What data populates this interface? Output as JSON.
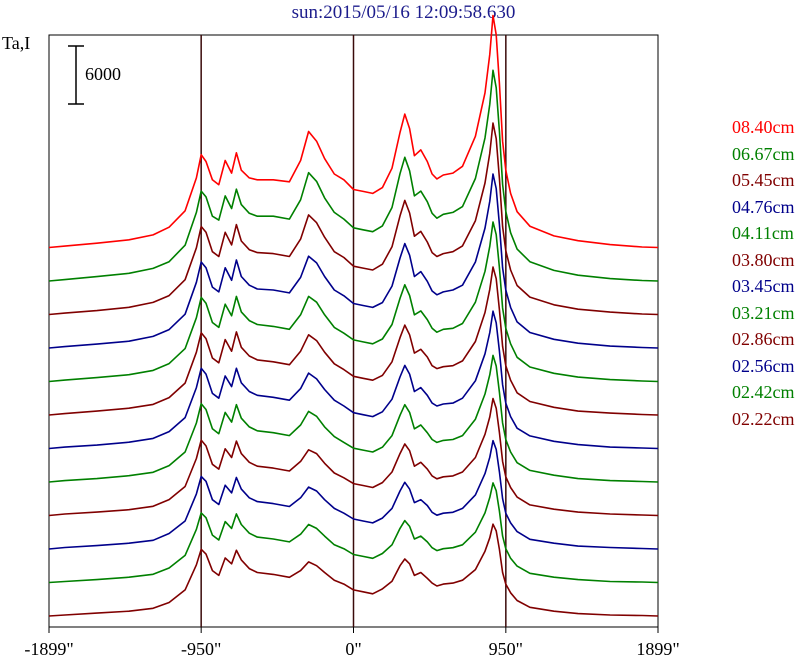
{
  "title": "sun:2015/05/16 12:09:58.630",
  "ylabel": "Ta,I",
  "scale_bar_label": "6000",
  "chart_data": {
    "type": "line",
    "title": "sun:2015/05/16 12:09:58.630",
    "ylabel": "Ta,I",
    "xlabel": "",
    "xlim": [
      -1899,
      1899
    ],
    "x_ticks": [
      -1899,
      -950,
      0,
      950,
      1899
    ],
    "x_tick_labels": [
      "-1899\"",
      "-950\"",
      "0\"",
      "950\"",
      "1899\""
    ],
    "vertical_lines": [
      -950,
      0,
      950
    ],
    "scale_bar_value": 6000,
    "layout": "stacked offset profiles, shortest wavelength at bottom",
    "grid": false,
    "legend_position": "right",
    "x": [
      -1899,
      -1800,
      -1600,
      -1400,
      -1250,
      -1150,
      -1050,
      -980,
      -950,
      -920,
      -880,
      -840,
      -800,
      -760,
      -730,
      -700,
      -650,
      -600,
      -500,
      -400,
      -330,
      -280,
      -230,
      -180,
      -120,
      -60,
      0,
      60,
      120,
      180,
      240,
      290,
      320,
      350,
      380,
      420,
      460,
      490,
      520,
      560,
      620,
      680,
      760,
      820,
      850,
      870,
      890,
      910,
      930,
      950,
      980,
      1020,
      1100,
      1250,
      1400,
      1600,
      1800,
      1899
    ],
    "series": [
      {
        "name": "08.40cm",
        "color": "#ff0000",
        "values": [
          0,
          150,
          450,
          800,
          1300,
          2100,
          3800,
          7200,
          9600,
          8900,
          7000,
          6500,
          9000,
          7700,
          9800,
          8000,
          7200,
          7000,
          7000,
          6800,
          9000,
          12000,
          11000,
          9200,
          7600,
          7000,
          6000,
          5800,
          5600,
          6200,
          8200,
          11900,
          13800,
          12300,
          9500,
          10100,
          8900,
          7600,
          7100,
          7500,
          7700,
          8400,
          11500,
          16000,
          20000,
          24000,
          22000,
          17000,
          11000,
          8000,
          5600,
          3700,
          2200,
          1200,
          700,
          300,
          50,
          0
        ]
      },
      {
        "name": "06.67cm",
        "color": "#008000",
        "values": [
          0,
          150,
          450,
          800,
          1300,
          2000,
          3700,
          7100,
          9300,
          8700,
          6700,
          6300,
          8800,
          7500,
          9500,
          7900,
          7000,
          6700,
          6700,
          6400,
          8400,
          11200,
          10300,
          8600,
          7100,
          6400,
          5500,
          5300,
          5100,
          5700,
          7600,
          11100,
          12800,
          11400,
          8800,
          9300,
          8200,
          7000,
          6500,
          6900,
          7100,
          7700,
          10600,
          14800,
          18300,
          21800,
          20000,
          15500,
          10000,
          7200,
          5000,
          3300,
          2000,
          1100,
          600,
          250,
          50,
          0
        ]
      },
      {
        "name": "05.45cm",
        "color": "#800000",
        "values": [
          0,
          150,
          400,
          750,
          1250,
          1950,
          3600,
          6900,
          9100,
          8500,
          6500,
          6000,
          8500,
          7200,
          9300,
          7600,
          6700,
          6400,
          6300,
          6000,
          7800,
          10300,
          9500,
          8000,
          6500,
          5900,
          5000,
          4800,
          4600,
          5200,
          7000,
          10200,
          11800,
          10500,
          8100,
          8600,
          7500,
          6400,
          6000,
          6300,
          6500,
          7100,
          9700,
          13600,
          16700,
          19800,
          18200,
          14100,
          9100,
          6600,
          4600,
          3000,
          1800,
          1000,
          550,
          250,
          50,
          0
        ]
      },
      {
        "name": "04.76cm",
        "color": "#00008b",
        "values": [
          0,
          150,
          400,
          700,
          1200,
          1900,
          3500,
          6800,
          8900,
          8300,
          6300,
          5800,
          8300,
          7000,
          9100,
          7400,
          6500,
          6100,
          6000,
          5700,
          7300,
          9500,
          8800,
          7400,
          6000,
          5400,
          4600,
          4400,
          4200,
          4700,
          6400,
          9300,
          10800,
          9600,
          7400,
          7900,
          6900,
          5900,
          5500,
          5800,
          6000,
          6500,
          8900,
          12400,
          15200,
          18000,
          16500,
          12800,
          8300,
          6000,
          4200,
          2700,
          1600,
          900,
          500,
          200,
          50,
          0
        ]
      },
      {
        "name": "04.11cm",
        "color": "#008000",
        "values": [
          0,
          150,
          400,
          700,
          1150,
          1850,
          3400,
          6600,
          8700,
          8100,
          6100,
          5600,
          8000,
          6800,
          8800,
          7200,
          6300,
          5900,
          5700,
          5400,
          6900,
          8800,
          8200,
          6900,
          5600,
          5000,
          4300,
          4100,
          3900,
          4400,
          5900,
          8600,
          10000,
          8900,
          6900,
          7300,
          6400,
          5500,
          5100,
          5400,
          5500,
          6000,
          8200,
          11400,
          14000,
          16500,
          15200,
          11800,
          7600,
          5500,
          3900,
          2500,
          1500,
          850,
          450,
          200,
          50,
          0
        ]
      },
      {
        "name": "03.80cm",
        "color": "#800000",
        "values": [
          0,
          150,
          400,
          700,
          1100,
          1800,
          3300,
          6500,
          8500,
          7900,
          5900,
          5400,
          7800,
          6600,
          8600,
          7000,
          6100,
          5700,
          5500,
          5200,
          6600,
          8300,
          7700,
          6500,
          5300,
          4700,
          4000,
          3800,
          3600,
          4100,
          5500,
          8000,
          9300,
          8300,
          6400,
          6800,
          6000,
          5100,
          4800,
          5000,
          5100,
          5600,
          7600,
          10600,
          13000,
          15300,
          14100,
          10900,
          7100,
          5100,
          3600,
          2300,
          1400,
          800,
          400,
          200,
          50,
          0
        ]
      },
      {
        "name": "03.45cm",
        "color": "#00008b",
        "values": [
          0,
          150,
          350,
          650,
          1050,
          1750,
          3200,
          6300,
          8300,
          7700,
          5700,
          5200,
          7500,
          6400,
          8300,
          6800,
          5900,
          5500,
          5300,
          5000,
          6200,
          7800,
          7200,
          6100,
          5000,
          4400,
          3700,
          3500,
          3300,
          3800,
          5100,
          7400,
          8600,
          7700,
          5900,
          6300,
          5500,
          4700,
          4400,
          4600,
          4700,
          5200,
          7000,
          9800,
          12000,
          14200,
          13000,
          10100,
          6600,
          4700,
          3300,
          2100,
          1300,
          750,
          400,
          150,
          50,
          0
        ]
      },
      {
        "name": "03.21cm",
        "color": "#008000",
        "values": [
          0,
          150,
          350,
          650,
          1000,
          1700,
          3100,
          6100,
          8100,
          7500,
          5500,
          5000,
          7200,
          6200,
          8000,
          6600,
          5700,
          5300,
          5100,
          4800,
          5900,
          7300,
          6800,
          5700,
          4700,
          4100,
          3500,
          3300,
          3100,
          3600,
          4800,
          6900,
          8000,
          7200,
          5500,
          5900,
          5100,
          4400,
          4100,
          4300,
          4400,
          4800,
          6500,
          9100,
          11100,
          13100,
          12000,
          9300,
          6100,
          4400,
          3100,
          2000,
          1200,
          700,
          350,
          150,
          50,
          0
        ]
      },
      {
        "name": "02.86cm",
        "color": "#800000",
        "values": [
          0,
          150,
          350,
          600,
          950,
          1650,
          3000,
          5900,
          7800,
          7200,
          5300,
          4800,
          6900,
          6000,
          7700,
          6400,
          5500,
          5100,
          4900,
          4600,
          5600,
          6800,
          6400,
          5400,
          4400,
          3900,
          3300,
          3100,
          2900,
          3400,
          4500,
          6400,
          7400,
          6700,
          5100,
          5500,
          4800,
          4100,
          3800,
          4000,
          4100,
          4500,
          6000,
          8400,
          10200,
          12100,
          11100,
          8600,
          5600,
          4000,
          2900,
          1900,
          1100,
          650,
          350,
          150,
          50,
          0
        ]
      },
      {
        "name": "02.56cm",
        "color": "#00008b",
        "values": [
          0,
          150,
          350,
          600,
          900,
          1600,
          2900,
          5700,
          7500,
          7000,
          5100,
          4600,
          6600,
          5800,
          7400,
          6200,
          5300,
          4900,
          4700,
          4400,
          5300,
          6400,
          6000,
          5100,
          4200,
          3700,
          3100,
          2900,
          2700,
          3200,
          4200,
          6000,
          6900,
          6200,
          4800,
          5100,
          4500,
          3800,
          3500,
          3700,
          3800,
          4200,
          5600,
          7800,
          9500,
          11200,
          10300,
          8000,
          5200,
          3700,
          2700,
          1800,
          1000,
          600,
          300,
          150,
          50,
          0
        ]
      },
      {
        "name": "02.42cm",
        "color": "#008000",
        "values": [
          0,
          100,
          300,
          550,
          850,
          1500,
          2800,
          5500,
          7200,
          6700,
          4900,
          4400,
          6300,
          5600,
          7100,
          6000,
          5100,
          4700,
          4500,
          4200,
          5000,
          6000,
          5600,
          4800,
          3900,
          3500,
          2900,
          2700,
          2500,
          3000,
          3900,
          5600,
          6400,
          5800,
          4500,
          4800,
          4200,
          3600,
          3300,
          3500,
          3600,
          3900,
          5200,
          7200,
          8800,
          10300,
          9500,
          7400,
          4800,
          3500,
          2500,
          1700,
          950,
          550,
          300,
          100,
          50,
          0
        ]
      },
      {
        "name": "02.22cm",
        "color": "#800000",
        "values": [
          0,
          100,
          300,
          500,
          800,
          1400,
          2700,
          5300,
          6900,
          6400,
          4700,
          4200,
          6000,
          5400,
          6800,
          5800,
          4900,
          4500,
          4300,
          4000,
          4700,
          5600,
          5200,
          4500,
          3700,
          3300,
          2700,
          2500,
          2300,
          2800,
          3600,
          5200,
          5900,
          5400,
          4200,
          4500,
          3900,
          3400,
          3100,
          3300,
          3400,
          3700,
          4800,
          6700,
          8100,
          9500,
          8800,
          6900,
          4500,
          3300,
          2400,
          1600,
          900,
          500,
          250,
          100,
          50,
          0
        ]
      }
    ]
  }
}
